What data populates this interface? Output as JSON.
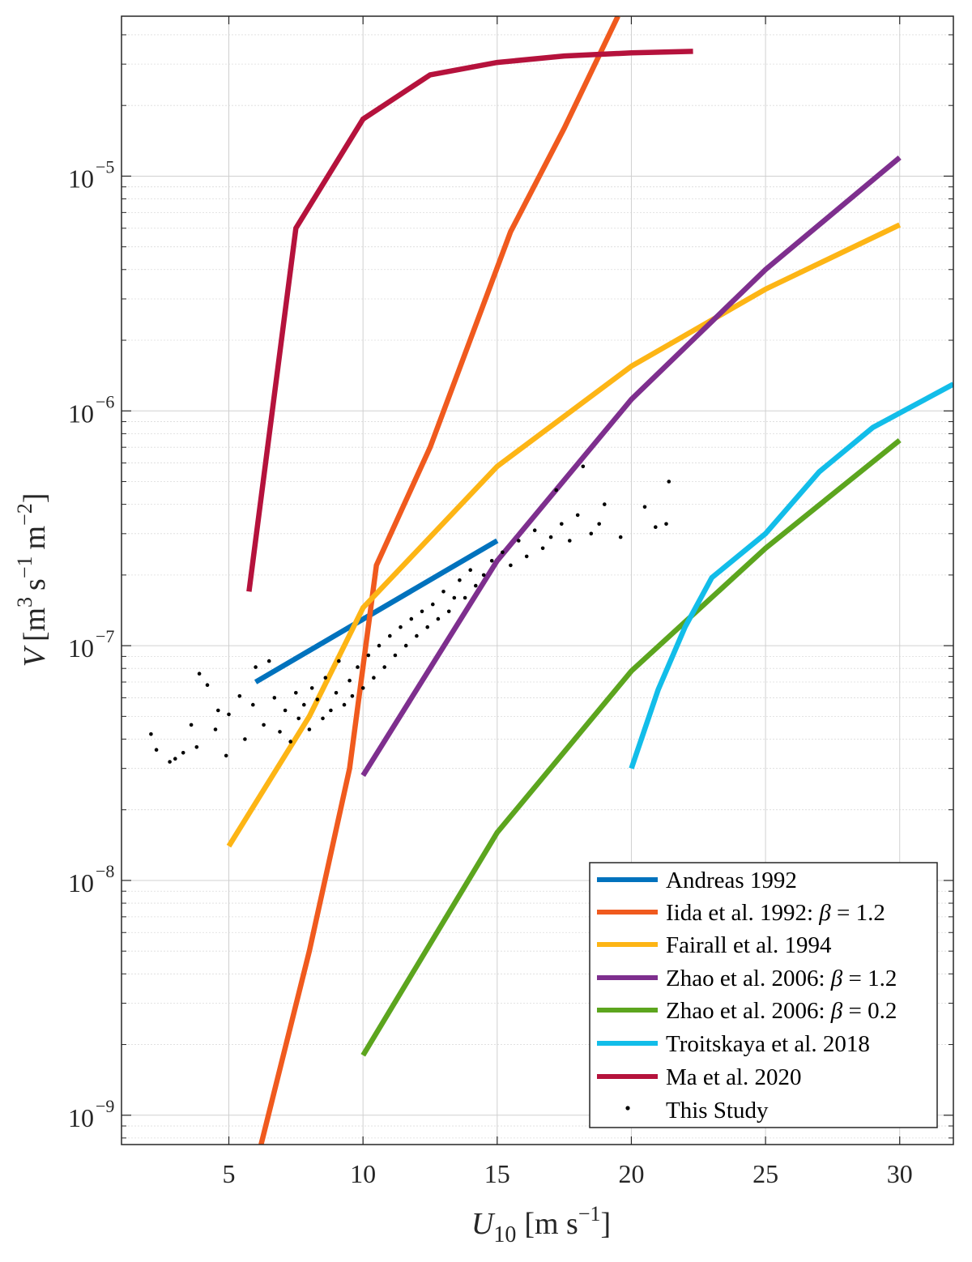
{
  "chart_data": {
    "type": "line",
    "title": "",
    "xlabel": "U10 [m s^-1]",
    "xlabel_parts": {
      "sym": "U",
      "sub": "10",
      "unit_pre": "[m s",
      "unit_exp": "−1",
      "unit_post": "]"
    },
    "ylabel": "V [m^3 s^-1 m^-2]",
    "ylabel_parts": {
      "sym": "V",
      "p1": "[m",
      "e1": "3",
      "p2": "s",
      "e2": "−1",
      "p3": "m",
      "e3": "−2",
      "p4": "]"
    },
    "xlim": [
      1,
      32
    ],
    "ylim": [
      7.5e-10,
      4.8e-05
    ],
    "yscale": "log",
    "grid": true,
    "x_ticks": [
      5,
      10,
      15,
      20,
      25,
      30
    ],
    "x_tick_labels": [
      "5",
      "10",
      "15",
      "20",
      "25",
      "30"
    ],
    "y_ticks": [
      -9,
      -8,
      -7,
      -6,
      -5
    ],
    "y_tick_labels": [
      "10",
      "10",
      "10",
      "10",
      "10"
    ],
    "y_tick_exponents": [
      "−9",
      "−8",
      "−7",
      "−6",
      "−5"
    ],
    "legend_position": "bottom-right",
    "series": [
      {
        "name": "Andreas 1992",
        "label": "Andreas 1992",
        "color": "#0072BD",
        "points": [
          [
            6,
            7e-08
          ],
          [
            15,
            2.8e-07
          ]
        ]
      },
      {
        "name": "Iida et al. 1992: β = 1.2",
        "label": "Iida et al. 1992: ",
        "beta": "β",
        "beta_val": " = 1.2",
        "color": "#F05A1E",
        "points": [
          [
            6.2,
            7.5e-10
          ],
          [
            8,
            5e-09
          ],
          [
            9.5,
            3e-08
          ],
          [
            10.5,
            2.2e-07
          ],
          [
            12.5,
            7e-07
          ],
          [
            15.5,
            5.8e-06
          ],
          [
            17.5,
            1.6e-05
          ],
          [
            19.5,
            4.8e-05
          ]
        ]
      },
      {
        "name": "Fairall et al. 1994",
        "label": "Fairall et al. 1994",
        "color": "#FDB515",
        "points": [
          [
            5,
            1.4e-08
          ],
          [
            8,
            5e-08
          ],
          [
            10,
            1.45e-07
          ],
          [
            15,
            5.8e-07
          ],
          [
            20,
            1.55e-06
          ],
          [
            25,
            3.3e-06
          ],
          [
            30,
            6.2e-06
          ]
        ]
      },
      {
        "name": "Zhao et al. 2006: β = 1.2",
        "label": "Zhao et al. 2006: ",
        "beta": "β",
        "beta_val": " = 1.2",
        "color": "#7E2F8E",
        "points": [
          [
            10,
            2.8e-08
          ],
          [
            15,
            2.3e-07
          ],
          [
            20,
            1.12e-06
          ],
          [
            25,
            4e-06
          ],
          [
            30,
            1.2e-05
          ]
        ]
      },
      {
        "name": "Zhao et al. 2006: β = 0.2",
        "label": "Zhao et al. 2006: ",
        "beta": "β",
        "beta_val": " = 0.2",
        "color": "#5CA51E",
        "points": [
          [
            10,
            1.8e-09
          ],
          [
            15,
            1.6e-08
          ],
          [
            20,
            7.8e-08
          ],
          [
            25,
            2.6e-07
          ],
          [
            30,
            7.5e-07
          ]
        ]
      },
      {
        "name": "Troitskaya et al. 2018",
        "label": "Troitskaya et al. 2018",
        "color": "#12BDE9",
        "points": [
          [
            20,
            3e-08
          ],
          [
            21,
            6.5e-08
          ],
          [
            22,
            1.2e-07
          ],
          [
            23,
            1.95e-07
          ],
          [
            25,
            3e-07
          ],
          [
            27,
            5.5e-07
          ],
          [
            29,
            8.5e-07
          ],
          [
            32,
            1.3e-06
          ]
        ]
      },
      {
        "name": "Ma et al. 2020",
        "label": "Ma et al. 2020",
        "color": "#B5123C",
        "points": [
          [
            5.75,
            1.7e-07
          ],
          [
            7.5,
            6e-06
          ],
          [
            10,
            1.75e-05
          ],
          [
            12.5,
            2.7e-05
          ],
          [
            15,
            3.05e-05
          ],
          [
            17.5,
            3.25e-05
          ],
          [
            20,
            3.35e-05
          ],
          [
            22.3,
            3.4e-05
          ]
        ]
      }
    ],
    "scatter": {
      "name": "This Study",
      "label": "This Study",
      "color": "#000000",
      "points": [
        [
          2.1,
          4.2e-08
        ],
        [
          2.3,
          3.6e-08
        ],
        [
          2.8,
          3.2e-08
        ],
        [
          3.0,
          3.3e-08
        ],
        [
          3.3,
          3.5e-08
        ],
        [
          3.6,
          4.6e-08
        ],
        [
          3.8,
          3.7e-08
        ],
        [
          3.9,
          7.6e-08
        ],
        [
          4.2,
          6.8e-08
        ],
        [
          4.5,
          4.4e-08
        ],
        [
          4.6,
          5.3e-08
        ],
        [
          4.9,
          3.4e-08
        ],
        [
          5.0,
          5.1e-08
        ],
        [
          5.4,
          6.1e-08
        ],
        [
          5.6,
          4e-08
        ],
        [
          5.9,
          5.6e-08
        ],
        [
          6.0,
          8.1e-08
        ],
        [
          6.3,
          4.6e-08
        ],
        [
          6.5,
          8.6e-08
        ],
        [
          6.7,
          6e-08
        ],
        [
          6.9,
          4.3e-08
        ],
        [
          7.1,
          5.3e-08
        ],
        [
          7.3,
          3.9e-08
        ],
        [
          7.5,
          6.3e-08
        ],
        [
          7.6,
          4.9e-08
        ],
        [
          7.8,
          5.6e-08
        ],
        [
          8.0,
          4.4e-08
        ],
        [
          8.1,
          6.6e-08
        ],
        [
          8.3,
          5.9e-08
        ],
        [
          8.5,
          4.9e-08
        ],
        [
          8.6,
          7.3e-08
        ],
        [
          8.8,
          5.3e-08
        ],
        [
          9.0,
          6.3e-08
        ],
        [
          9.1,
          8.6e-08
        ],
        [
          9.3,
          5.6e-08
        ],
        [
          9.5,
          7.1e-08
        ],
        [
          9.6,
          6.1e-08
        ],
        [
          9.8,
          8.1e-08
        ],
        [
          10.0,
          6.6e-08
        ],
        [
          10.2,
          9.1e-08
        ],
        [
          10.4,
          7.3e-08
        ],
        [
          10.6,
          1e-07
        ],
        [
          10.8,
          8.1e-08
        ],
        [
          11.0,
          1.1e-07
        ],
        [
          11.2,
          9.1e-08
        ],
        [
          11.4,
          1.2e-07
        ],
        [
          11.6,
          1e-07
        ],
        [
          11.8,
          1.3e-07
        ],
        [
          12.0,
          1.1e-07
        ],
        [
          12.2,
          1.4e-07
        ],
        [
          12.4,
          1.2e-07
        ],
        [
          12.6,
          1.5e-07
        ],
        [
          12.8,
          1.3e-07
        ],
        [
          13.0,
          1.7e-07
        ],
        [
          13.2,
          1.4e-07
        ],
        [
          13.4,
          1.6e-07
        ],
        [
          13.6,
          1.9e-07
        ],
        [
          13.8,
          1.6e-07
        ],
        [
          14.0,
          2.1e-07
        ],
        [
          14.2,
          1.8e-07
        ],
        [
          14.5,
          2e-07
        ],
        [
          14.8,
          2.3e-07
        ],
        [
          15.2,
          2.5e-07
        ],
        [
          15.5,
          2.2e-07
        ],
        [
          15.8,
          2.8e-07
        ],
        [
          16.1,
          2.4e-07
        ],
        [
          16.4,
          3.1e-07
        ],
        [
          16.7,
          2.6e-07
        ],
        [
          17.0,
          2.9e-07
        ],
        [
          17.2,
          4.6e-07
        ],
        [
          17.4,
          3.3e-07
        ],
        [
          17.7,
          2.8e-07
        ],
        [
          18.0,
          3.6e-07
        ],
        [
          18.2,
          5.8e-07
        ],
        [
          18.5,
          3e-07
        ],
        [
          18.8,
          3.3e-07
        ],
        [
          19.0,
          4e-07
        ],
        [
          19.6,
          2.9e-07
        ],
        [
          20.5,
          3.9e-07
        ],
        [
          20.9,
          3.2e-07
        ],
        [
          21.3,
          3.3e-07
        ],
        [
          21.4,
          5e-07
        ]
      ]
    }
  }
}
